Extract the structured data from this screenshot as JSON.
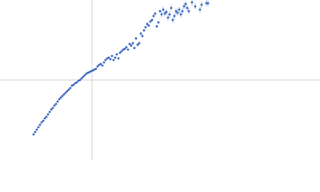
{
  "chart_data": {
    "type": "scatter",
    "xlim": [
      -1.15,
      2.85
    ],
    "ylim": [
      -1,
      1
    ],
    "zero_lines": true,
    "series": [
      {
        "color": "#3a66c0",
        "error_color": "#9fb5e0",
        "x": [
          -0.73,
          -0.71,
          -0.69,
          -0.67,
          -0.65,
          -0.63,
          -0.61,
          -0.59,
          -0.57,
          -0.55,
          -0.53,
          -0.51,
          -0.49,
          -0.47,
          -0.45,
          -0.43,
          -0.41,
          -0.39,
          -0.37,
          -0.35,
          -0.33,
          -0.31,
          -0.29,
          -0.27,
          -0.25,
          -0.23,
          -0.21,
          -0.19,
          -0.17,
          -0.15,
          -0.13,
          -0.11,
          -0.09,
          -0.07,
          -0.05,
          -0.03,
          -0.01,
          0.01,
          0.03,
          0.05,
          0.07,
          0.09,
          0.11,
          0.13,
          0.15,
          0.17,
          0.19,
          0.21,
          0.23,
          0.25,
          0.27,
          0.29,
          0.31,
          0.33,
          0.35,
          0.37,
          0.39,
          0.41,
          0.43,
          0.45,
          0.47,
          0.49,
          0.51,
          0.53,
          0.55,
          0.57,
          0.59,
          0.61,
          0.63,
          0.65,
          0.67,
          0.69,
          0.71,
          0.73,
          0.75,
          0.77,
          0.79,
          0.81,
          0.83,
          0.85,
          0.87,
          0.89,
          0.91,
          0.93,
          0.95,
          0.97,
          0.99,
          1.01,
          1.03,
          1.05,
          1.07,
          1.09,
          1.11,
          1.13,
          1.15,
          1.17,
          1.19,
          1.21,
          1.25,
          1.29,
          1.35,
          1.37,
          1.43,
          1.45
        ],
        "values": [
          -0.68,
          -0.65,
          -0.62,
          -0.59,
          -0.56,
          -0.53,
          -0.51,
          -0.48,
          -0.46,
          -0.43,
          -0.4,
          -0.37,
          -0.35,
          -0.32,
          -0.3,
          -0.27,
          -0.24,
          -0.22,
          -0.2,
          -0.18,
          -0.16,
          -0.14,
          -0.12,
          -0.1,
          -0.07,
          -0.06,
          -0.04,
          -0.03,
          -0.01,
          0,
          0.02,
          0.04,
          0.06,
          0.08,
          0.09,
          0.1,
          0.11,
          0.12,
          0.13,
          0.14,
          0.17,
          0.19,
          0.2,
          0.18,
          0.22,
          0.25,
          0.27,
          0.28,
          0.26,
          0.3,
          0.25,
          0.28,
          0.32,
          0.27,
          0.34,
          0.36,
          0.38,
          0.39,
          0.41,
          0.38,
          0.45,
          0.43,
          0.46,
          0.4,
          0.52,
          0.44,
          0.46,
          0.58,
          0.55,
          0.62,
          0.66,
          0.7,
          0.68,
          0.73,
          0.75,
          0.8,
          0.83,
          0.67,
          0.72,
          0.86,
          0.82,
          0.88,
          0.83,
          0.85,
          0.78,
          0.82,
          0.9,
          0.75,
          0.8,
          0.86,
          0.84,
          0.88,
          0.82,
          0.86,
          0.92,
          0.95,
          0.9,
          0.86,
          0.97,
          0.92,
          0.88,
          0.94,
          0.96,
          0.96
        ],
        "errors": [
          0.01,
          0.01,
          0.01,
          0.01,
          0.01,
          0.01,
          0.01,
          0.01,
          0.01,
          0.01,
          0.01,
          0.01,
          0.01,
          0.01,
          0.01,
          0.01,
          0.01,
          0.01,
          0.01,
          0.01,
          0.01,
          0.01,
          0.01,
          0.01,
          0.01,
          0.01,
          0.01,
          0.01,
          0.01,
          0.01,
          0.01,
          0.01,
          0.01,
          0.01,
          0.01,
          0.01,
          0.01,
          0.01,
          0.01,
          0.01,
          0.01,
          0.01,
          0.01,
          0.01,
          0.01,
          0.01,
          0.01,
          0.01,
          0.01,
          0.01,
          0.01,
          0.01,
          0.01,
          0.01,
          0.01,
          0.01,
          0.01,
          0.01,
          0.01,
          0.01,
          0.02,
          0.02,
          0.02,
          0.02,
          0.02,
          0.02,
          0.02,
          0.02,
          0.02,
          0.02,
          0.02,
          0.02,
          0.02,
          0.02,
          0.02,
          0.02,
          0.02,
          0.02,
          0.02,
          0.02,
          0.04,
          0.04,
          0.04,
          0.04,
          0.04,
          0.04,
          0.04,
          0.04,
          0.04,
          0.04,
          0.04,
          0.04,
          0.04,
          0.04,
          0.04,
          0.04,
          0.04,
          0.04,
          0.04,
          0.04,
          0.04,
          0.04,
          0.04,
          0.04
        ]
      }
    ]
  }
}
